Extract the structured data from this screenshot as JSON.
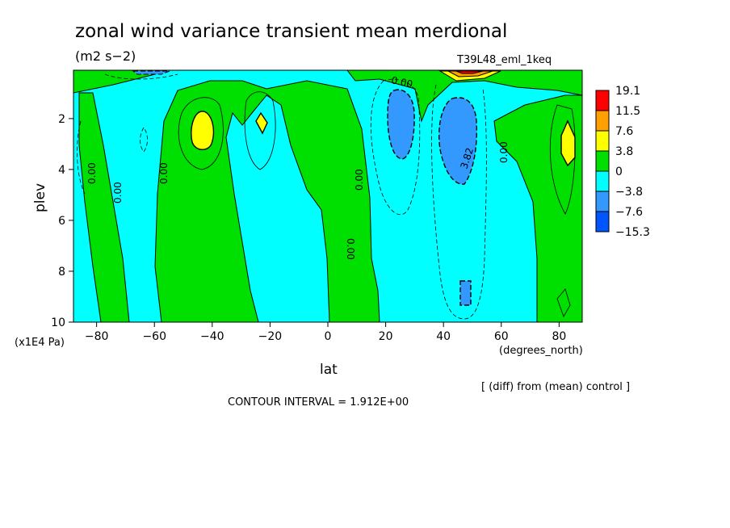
{
  "chart_data": {
    "type": "heatmap",
    "title": "zonal wind variance transient mean merdional",
    "units": "(m2 s−2)",
    "run_label": "T39L48_eml_1keq",
    "xlabel": "lat",
    "x_units": "(degrees_north)",
    "ylabel": "plev",
    "y_units": "(x1E4 Pa)",
    "x_ticks": [
      -80,
      -60,
      -40,
      -20,
      0,
      20,
      40,
      60,
      80
    ],
    "y_ticks": [
      2,
      4,
      6,
      8,
      10
    ],
    "xlim": [
      -88,
      88
    ],
    "ylim": [
      10,
      0.1
    ],
    "note": "[ (diff) from (mean) control ]",
    "contour_interval": "CONTOUR INTERVAL = 1.912E+00",
    "colorbar_labels": [
      "19.1",
      "11.5",
      "7.6",
      "3.8",
      "0",
      "−3.8",
      "−7.6",
      "−15.3"
    ],
    "colorbar_colors": [
      "#ff0000",
      "#ffa000",
      "#ffff00",
      "#00e000",
      "#00ffff",
      "#3399ff",
      "#0055ff"
    ],
    "contour_labels": [
      "0.00",
      "0.00",
      "0.00",
      "0.00",
      "0.00",
      "0.00",
      "0.00",
      "3.82",
      "0.00"
    ]
  }
}
